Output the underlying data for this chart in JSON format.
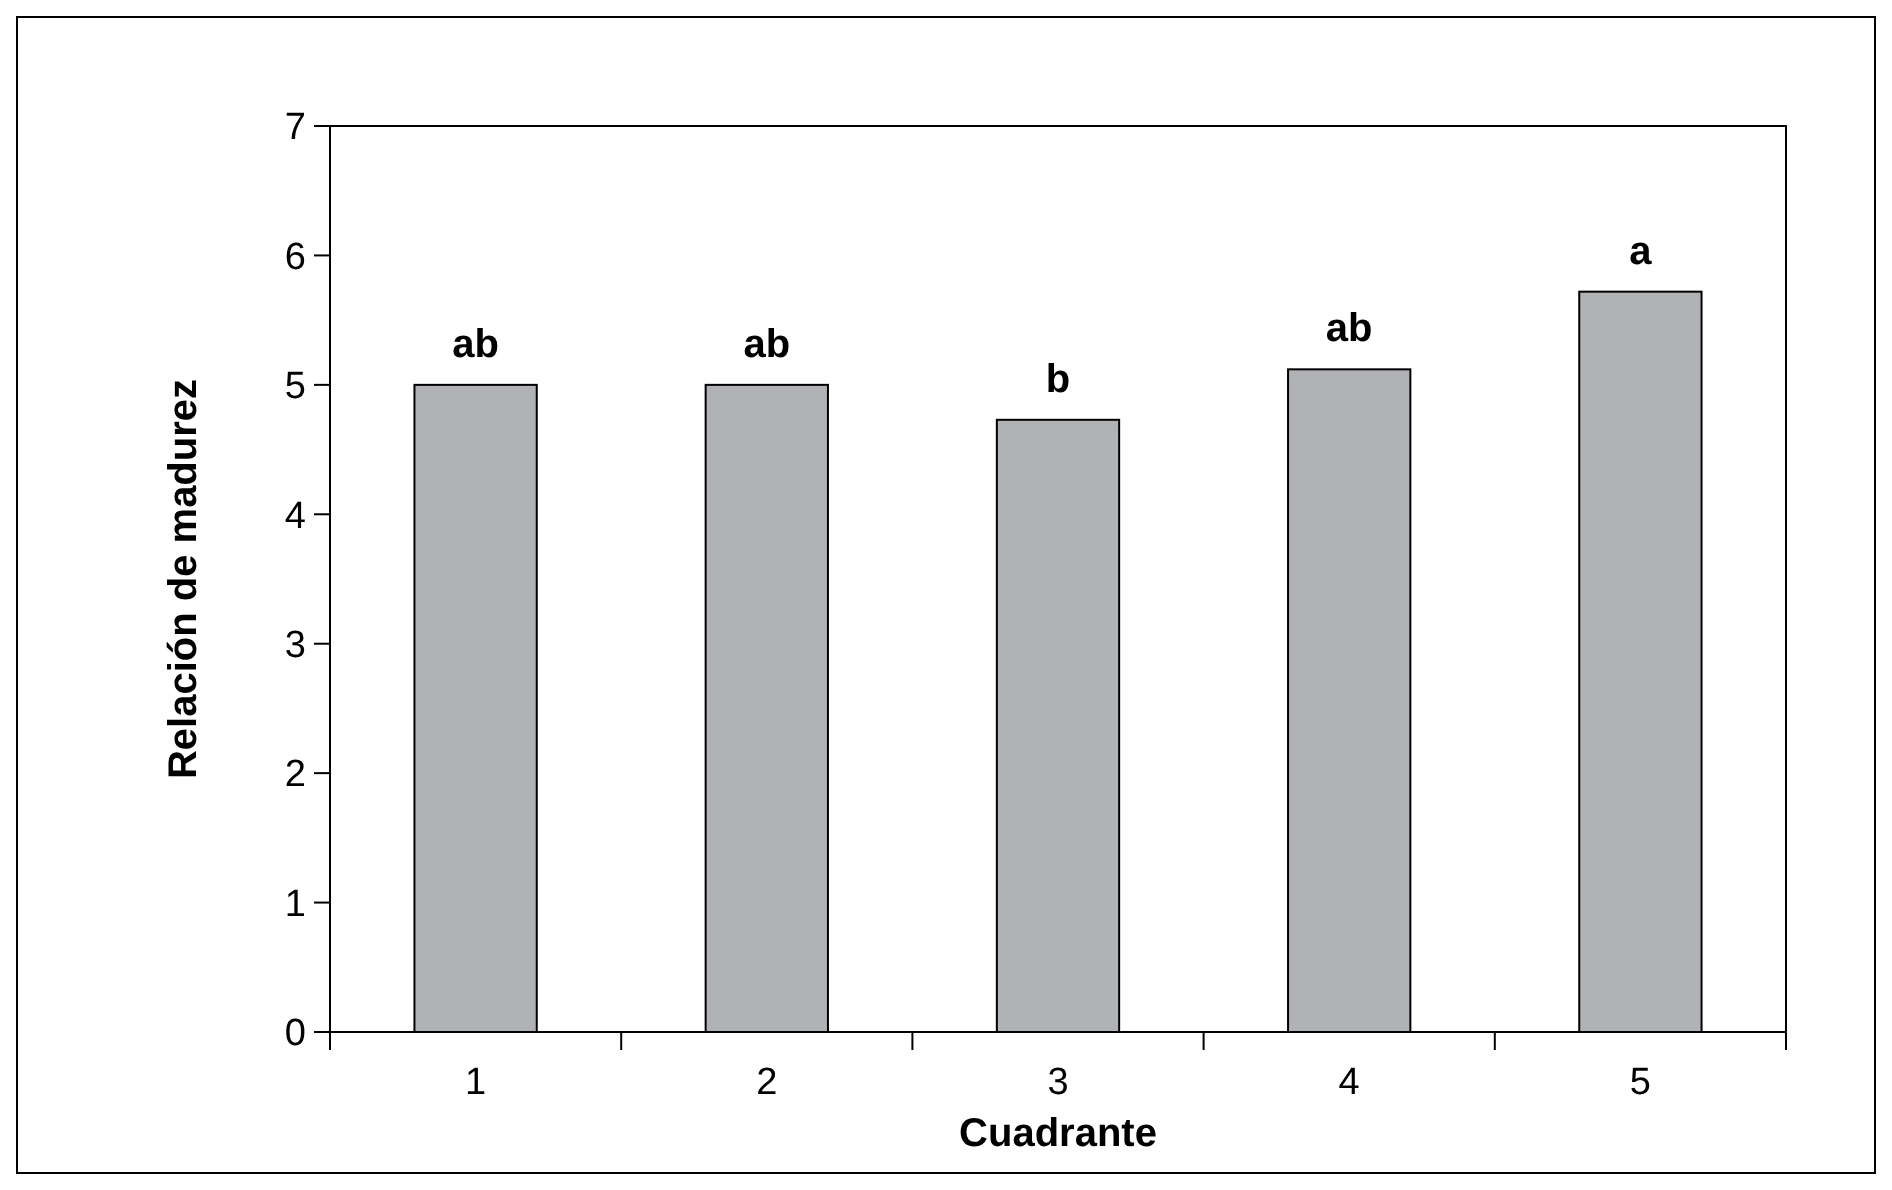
{
  "chart_data": {
    "type": "bar",
    "xlabel": "Cuadrante",
    "ylabel": "Relación de madurez",
    "categories": [
      "1",
      "2",
      "3",
      "4",
      "5"
    ],
    "values": [
      5.0,
      5.0,
      4.73,
      5.12,
      5.72
    ],
    "color": "#b1b2b5",
    "ylim": [
      0,
      7
    ],
    "yticks": [
      0,
      1,
      2,
      3,
      4,
      5,
      6,
      7
    ],
    "grid": false,
    "annotations": [
      {
        "text": "ab",
        "x": "1",
        "y": 5.0
      },
      {
        "text": "ab",
        "x": "2",
        "y": 5.0
      },
      {
        "text": "b",
        "x": "3",
        "y": 4.73
      },
      {
        "text": "ab",
        "x": "4",
        "y": 5.12
      },
      {
        "text": "a",
        "x": "5",
        "y": 5.72
      }
    ]
  }
}
